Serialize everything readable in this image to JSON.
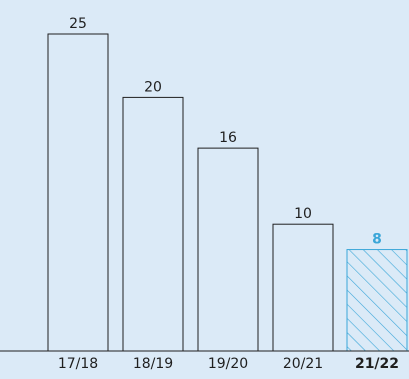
{
  "chart_data": {
    "type": "bar",
    "categories": [
      "17/18",
      "18/19",
      "19/20",
      "20/21",
      "21/22"
    ],
    "values": [
      25,
      20,
      16,
      10,
      8
    ],
    "highlight_index": 4,
    "title": "",
    "xlabel": "",
    "ylabel": "",
    "ylim": [
      0,
      25
    ],
    "grid": false,
    "legend": "none",
    "colors": {
      "background": "#dbeaf7",
      "bar_stroke": "#1f1f1f",
      "text": "#1f1f1f",
      "highlight": "#3aa6d8",
      "highlight_bold_label": "#1f1f1f"
    }
  }
}
